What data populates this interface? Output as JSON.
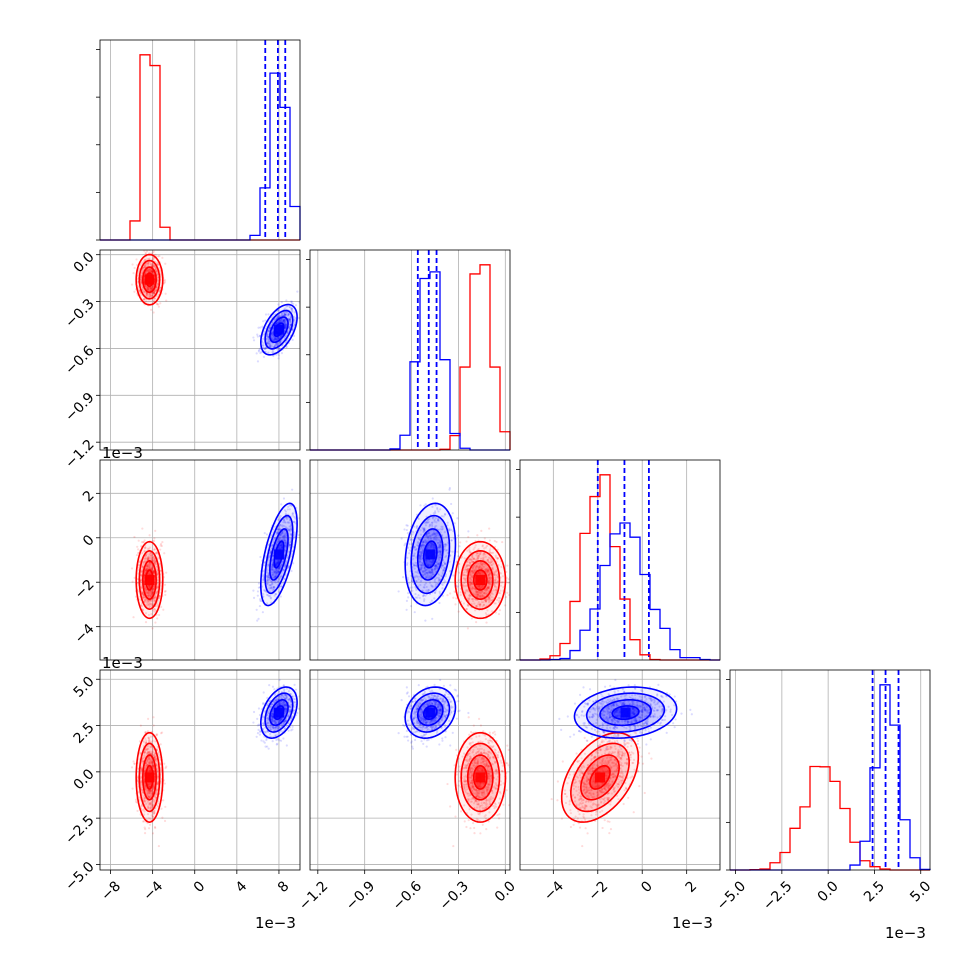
{
  "chart_data": {
    "type": "corner",
    "grid": true,
    "offset_text": "1e−3",
    "colors": {
      "series_a": "#ff0000",
      "series_b": "#0000ff",
      "grid": "#b0b0b0"
    },
    "series": [
      {
        "color": "red",
        "mean": [
          -4.3,
          -0.16,
          -1.9,
          -0.3
        ],
        "sd": [
          0.55,
          0.07,
          0.75,
          1.05
        ],
        "corr": [
          [
            1,
            0,
            0,
            0
          ],
          [
            0,
            1,
            0,
            0
          ],
          [
            0,
            0,
            1,
            0.45
          ],
          [
            0,
            0,
            0.45,
            1
          ]
        ],
        "quantile_lines": null
      },
      {
        "color": "blue",
        "mean": [
          8.0,
          -0.48,
          -0.75,
          3.2
        ],
        "sd": [
          0.75,
          0.07,
          1.0,
          0.6
        ],
        "corr": [
          [
            1,
            0.5,
            0.6,
            0.4
          ],
          [
            0.5,
            1,
            0.2,
            0.2
          ],
          [
            0.6,
            0.2,
            1,
            0.15
          ],
          [
            0.4,
            0.2,
            0.15,
            1
          ]
        ],
        "quantile_lines": [
          [
            6.7,
            7.9,
            8.6
          ],
          [
            -0.56,
            -0.49,
            -0.44
          ],
          [
            -2.0,
            -0.8,
            0.3
          ],
          [
            2.4,
            3.1,
            3.8
          ]
        ]
      }
    ],
    "parameters": [
      {
        "range": [
          -9.0,
          10.0
        ],
        "ticks": [
          -8,
          -4,
          0,
          4,
          8
        ],
        "tick_labels": [
          "−8",
          "−4",
          "0",
          "4",
          "8"
        ]
      },
      {
        "range": [
          -1.25,
          0.03
        ],
        "ticks": [
          -1.2,
          -0.9,
          -0.6,
          -0.3,
          0.0
        ],
        "tick_labels": [
          "−1.2",
          "−0.9",
          "−0.6",
          "−0.3",
          "0.0"
        ]
      },
      {
        "range": [
          -5.5,
          3.5
        ],
        "ticks": [
          -4,
          -2,
          0,
          2
        ],
        "tick_labels": [
          "−4",
          "−2",
          "0",
          "2"
        ]
      },
      {
        "range": [
          -5.3,
          5.5
        ],
        "ticks": [
          -5.0,
          -2.5,
          0.0,
          2.5,
          5.0
        ],
        "tick_labels": [
          "−5.0",
          "−2.5",
          "0.0",
          "2.5",
          "5.0"
        ]
      }
    ]
  }
}
